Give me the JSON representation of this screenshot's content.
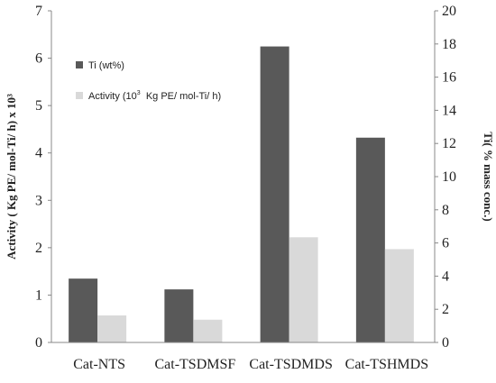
{
  "chart_data": {
    "type": "bar",
    "categories": [
      "Cat-NTS",
      "Cat-TSDMSF",
      "Cat-TSDMDS",
      "Cat-TSHMDS"
    ],
    "series": [
      {
        "name": "Ti (wt%)",
        "axis": "right",
        "color": "#595959",
        "values": [
          3.85,
          3.2,
          17.85,
          12.35
        ]
      },
      {
        "name": "Activity",
        "axis": "left",
        "color": "#d9d9d9",
        "values": [
          0.57,
          0.48,
          2.22,
          1.97
        ]
      }
    ],
    "legend": {
      "ti_label": "Ti (wt%)",
      "activity_prefix": "Activity (10",
      "activity_sup": "3",
      "activity_suffix": "  Kg PE/ mol-Ti/ h)",
      "placement": "top-left"
    },
    "left_axis": {
      "label": "Activity ( Kg PE/ mol-Ti/ h) x 10³",
      "ylim": [
        0,
        7
      ],
      "ticks": [
        "0",
        "1",
        "2",
        "3",
        "4",
        "5",
        "6",
        "7"
      ]
    },
    "right_axis": {
      "label": "Ti( % mass conc.)",
      "ylim": [
        0,
        20
      ],
      "ticks": [
        "0",
        "2",
        "4",
        "6",
        "8",
        "10",
        "12",
        "14",
        "16",
        "18",
        "20"
      ]
    },
    "grid": false
  }
}
